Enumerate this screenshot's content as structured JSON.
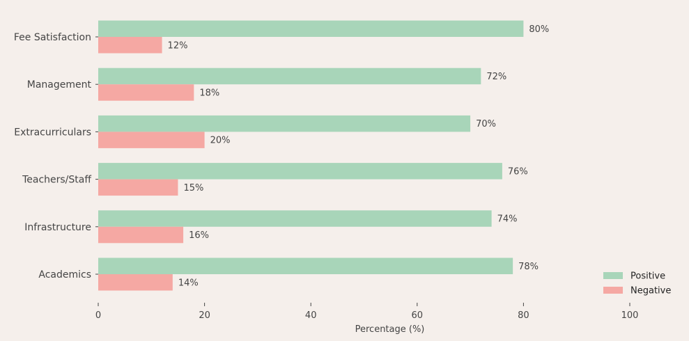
{
  "chart_data": {
    "type": "bar",
    "orientation": "horizontal",
    "categories": [
      "Fee Satisfaction",
      "Management",
      "Extracurriculars",
      "Teachers/Staff",
      "Infrastructure",
      "Academics"
    ],
    "series": [
      {
        "name": "Positive",
        "values": [
          80,
          72,
          70,
          76,
          74,
          78
        ],
        "color": "#a8d5b9"
      },
      {
        "name": "Negative",
        "values": [
          12,
          18,
          20,
          15,
          16,
          14
        ],
        "color": "#f5a8a3"
      }
    ],
    "value_suffix": "%",
    "xlabel": "Percentage (%)",
    "xlim": [
      0,
      100
    ],
    "xticks": [
      0,
      20,
      40,
      60,
      80,
      100
    ],
    "grid": false,
    "legend": "bottom-right"
  },
  "colors": {
    "background": "#f5efeb",
    "text": "#444444"
  }
}
